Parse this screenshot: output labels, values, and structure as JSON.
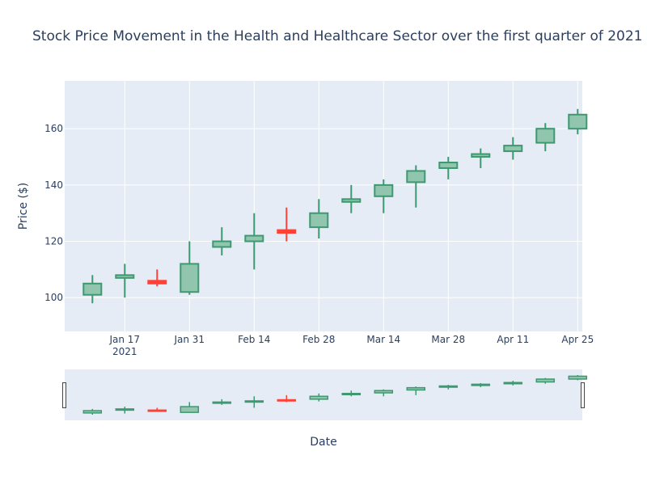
{
  "chart_data": {
    "type": "candlestick",
    "title": "Stock Price Movement in the Health and Healthcare Sector over the first quarter of 2021",
    "xlabel": "Date",
    "ylabel": "Price ($)",
    "ylim": [
      88,
      177
    ],
    "xlim": [
      "2021-01-04",
      "2021-04-26"
    ],
    "y_ticks": [
      100,
      120,
      140,
      160
    ],
    "x_ticks": [
      {
        "date": "2021-01-17",
        "label": "Jan 17",
        "sublabel": "2021"
      },
      {
        "date": "2021-01-31",
        "label": "Jan 31",
        "sublabel": ""
      },
      {
        "date": "2021-02-14",
        "label": "Feb 14",
        "sublabel": ""
      },
      {
        "date": "2021-02-28",
        "label": "Feb 28",
        "sublabel": ""
      },
      {
        "date": "2021-03-14",
        "label": "Mar 14",
        "sublabel": ""
      },
      {
        "date": "2021-03-28",
        "label": "Mar 28",
        "sublabel": ""
      },
      {
        "date": "2021-04-11",
        "label": "Apr 11",
        "sublabel": ""
      },
      {
        "date": "2021-04-25",
        "label": "Apr 25",
        "sublabel": ""
      }
    ],
    "grid": true,
    "range_slider": true,
    "colors": {
      "increasing_line": "#3D9970",
      "increasing_fill": "#91C5AE",
      "decreasing_line": "#FF4136",
      "decreasing_fill": "#FF4136",
      "plot_bg": "#E5ECF6",
      "grid": "#ffffff",
      "text": "#2a3f5f"
    },
    "candles": [
      {
        "date": "2021-01-10",
        "open": 101,
        "high": 108,
        "low": 98,
        "close": 105
      },
      {
        "date": "2021-01-17",
        "open": 107,
        "high": 112,
        "low": 100,
        "close": 108
      },
      {
        "date": "2021-01-24",
        "open": 106,
        "high": 110,
        "low": 104,
        "close": 105
      },
      {
        "date": "2021-01-31",
        "open": 102,
        "high": 120,
        "low": 101,
        "close": 112
      },
      {
        "date": "2021-02-07",
        "open": 118,
        "high": 125,
        "low": 115,
        "close": 120
      },
      {
        "date": "2021-02-14",
        "open": 120,
        "high": 130,
        "low": 110,
        "close": 122
      },
      {
        "date": "2021-02-21",
        "open": 124,
        "high": 132,
        "low": 120,
        "close": 123
      },
      {
        "date": "2021-02-28",
        "open": 125,
        "high": 135,
        "low": 121,
        "close": 130
      },
      {
        "date": "2021-03-07",
        "open": 134,
        "high": 140,
        "low": 130,
        "close": 135
      },
      {
        "date": "2021-03-14",
        "open": 136,
        "high": 142,
        "low": 130,
        "close": 140
      },
      {
        "date": "2021-03-21",
        "open": 141,
        "high": 147,
        "low": 132,
        "close": 145
      },
      {
        "date": "2021-03-28",
        "open": 146,
        "high": 150,
        "low": 142,
        "close": 148
      },
      {
        "date": "2021-04-04",
        "open": 150,
        "high": 153,
        "low": 146,
        "close": 151
      },
      {
        "date": "2021-04-11",
        "open": 152,
        "high": 157,
        "low": 149,
        "close": 154
      },
      {
        "date": "2021-04-18",
        "open": 155,
        "high": 162,
        "low": 152,
        "close": 160
      },
      {
        "date": "2021-04-25",
        "open": 160,
        "high": 167,
        "low": 158,
        "close": 165
      }
    ]
  }
}
